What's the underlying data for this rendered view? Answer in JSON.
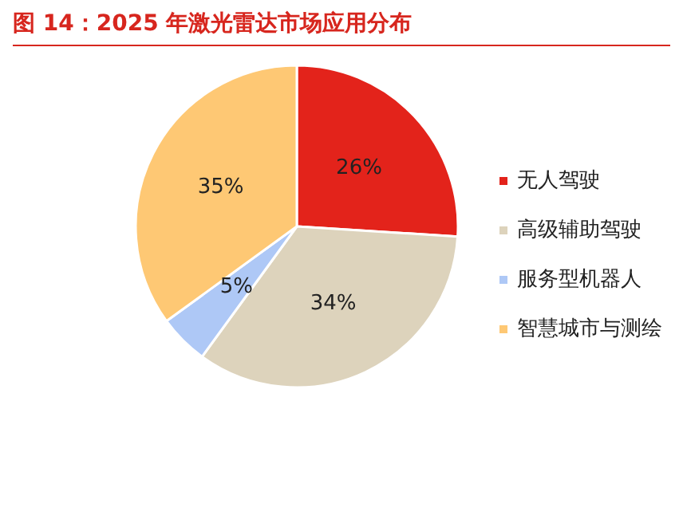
{
  "chart_data": {
    "type": "pie",
    "title": "图 14：2025 年激光雷达市场应用分布",
    "categories": [
      "无人驾驶",
      "高级辅助驾驶",
      "服务型机器人",
      "智慧城市与测绘"
    ],
    "values": [
      26,
      34,
      5,
      35
    ],
    "colors": [
      "#e3231b",
      "#ddd3bc",
      "#aec8f6",
      "#fec874"
    ],
    "value_labels": [
      "26%",
      "34%",
      "5%",
      "35%"
    ],
    "legend": "right"
  }
}
